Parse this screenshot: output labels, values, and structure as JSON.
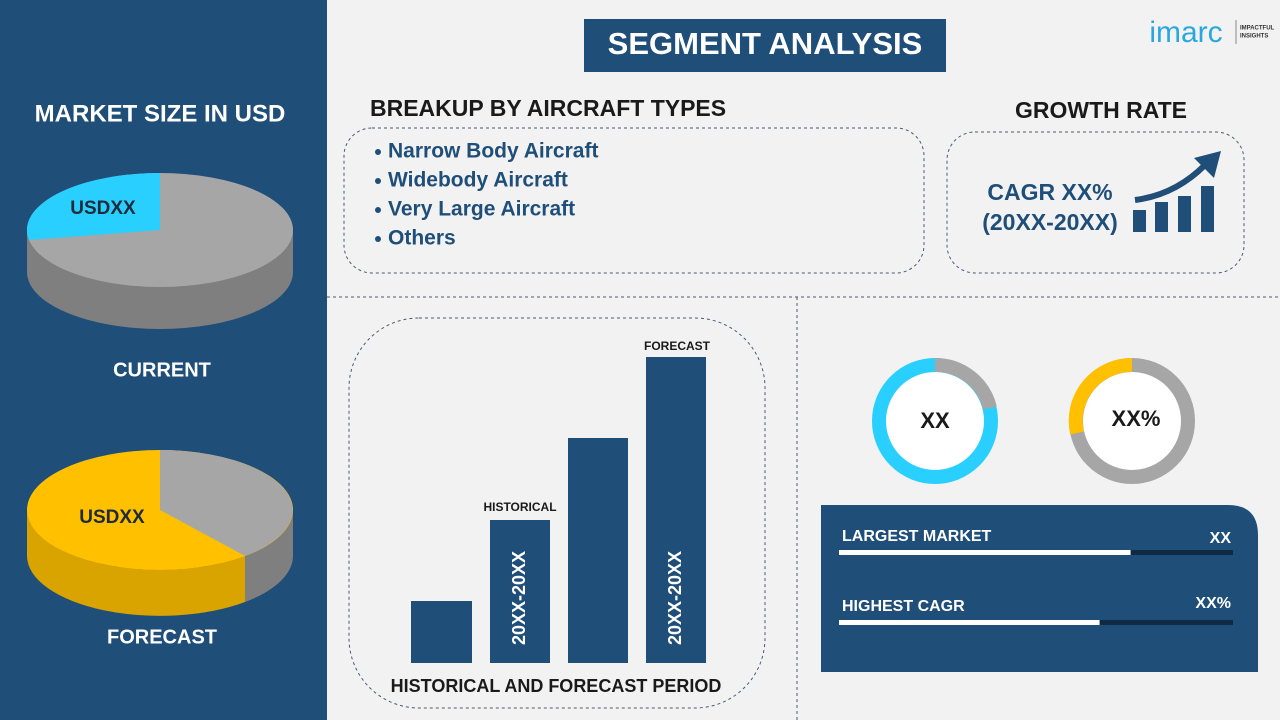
{
  "header": {
    "title": "SEGMENT ANALYSIS",
    "logo": "imarc",
    "logo_tagline": [
      "IMPACTFUL",
      "INSIGHTS"
    ]
  },
  "market_size": {
    "title": "MARKET SIZE IN USD",
    "current": {
      "value": "USDXX",
      "label": "CURRENT"
    },
    "forecast": {
      "value": "USDXX",
      "label": "FORECAST"
    }
  },
  "breakup": {
    "title": "BREAKUP BY AIRCRAFT TYPES",
    "items": [
      "Narrow Body Aircraft",
      "Widebody Aircraft",
      "Very Large Aircraft",
      "Others"
    ]
  },
  "growth_rate": {
    "title": "GROWTH RATE",
    "cagr": "CAGR XX%",
    "period": "(20XX-20XX)"
  },
  "period_chart": {
    "forecast_label": "FORECAST",
    "historical_label": "HISTORICAL",
    "historical_bar_text": "20XX-20XX",
    "forecast_bar_text": "20XX-20XX",
    "caption": "HISTORICAL AND FORECAST PERIOD"
  },
  "donuts": [
    "XX",
    "XX%"
  ],
  "stats": [
    {
      "label": "LARGEST MARKET",
      "value": "XX"
    },
    {
      "label": "HIGHEST CAGR",
      "value": "XX%"
    }
  ]
}
